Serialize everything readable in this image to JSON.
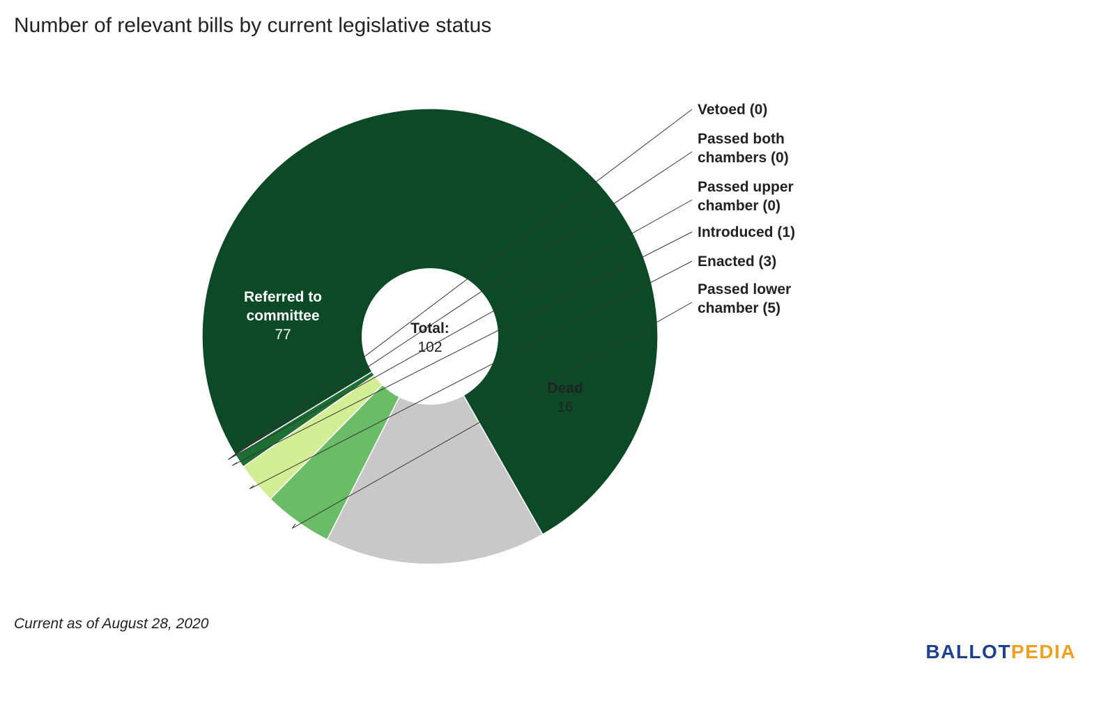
{
  "chart_data": {
    "type": "pie",
    "donut": true,
    "title": "Number of relevant bills by current legislative status",
    "center_label": {
      "line1": "Total:",
      "line2": "102"
    },
    "slices": [
      {
        "key": "referred",
        "label_lines": [
          "Referred to",
          "committee"
        ],
        "value": 77,
        "value_text": "77",
        "color": "#0c4a27",
        "text_color": "#ffffff"
      },
      {
        "key": "dead",
        "label_lines": [
          "Dead"
        ],
        "value": 16,
        "value_text": "16",
        "color": "#c8c8c8",
        "text_color": "#222222"
      },
      {
        "key": "passed_lower",
        "label_lines": [
          "Passed lower",
          "chamber (5)"
        ],
        "value": 5,
        "color": "#6abd66"
      },
      {
        "key": "enacted",
        "label_lines": [
          "Enacted (3)"
        ],
        "value": 3,
        "color": "#d4ee96"
      },
      {
        "key": "introduced",
        "label_lines": [
          "Introduced (1)"
        ],
        "value": 1,
        "color": "#1e6e33"
      },
      {
        "key": "passed_upper",
        "label_lines": [
          "Passed upper",
          "chamber (0)"
        ],
        "value": 0,
        "color": "#2d8a3e"
      },
      {
        "key": "passed_both",
        "label_lines": [
          "Passed both",
          "chambers (0)"
        ],
        "value": 0,
        "color": "#3a9a48"
      },
      {
        "key": "vetoed",
        "label_lines": [
          "Vetoed (0)"
        ],
        "value": 0,
        "color": "#4aa555"
      }
    ],
    "footnote": "Current as of August 28, 2020"
  },
  "branding": {
    "part1": "BALLOT",
    "part2": "PEDIA",
    "color1": "#1f3f8f",
    "color2": "#f0a020"
  }
}
